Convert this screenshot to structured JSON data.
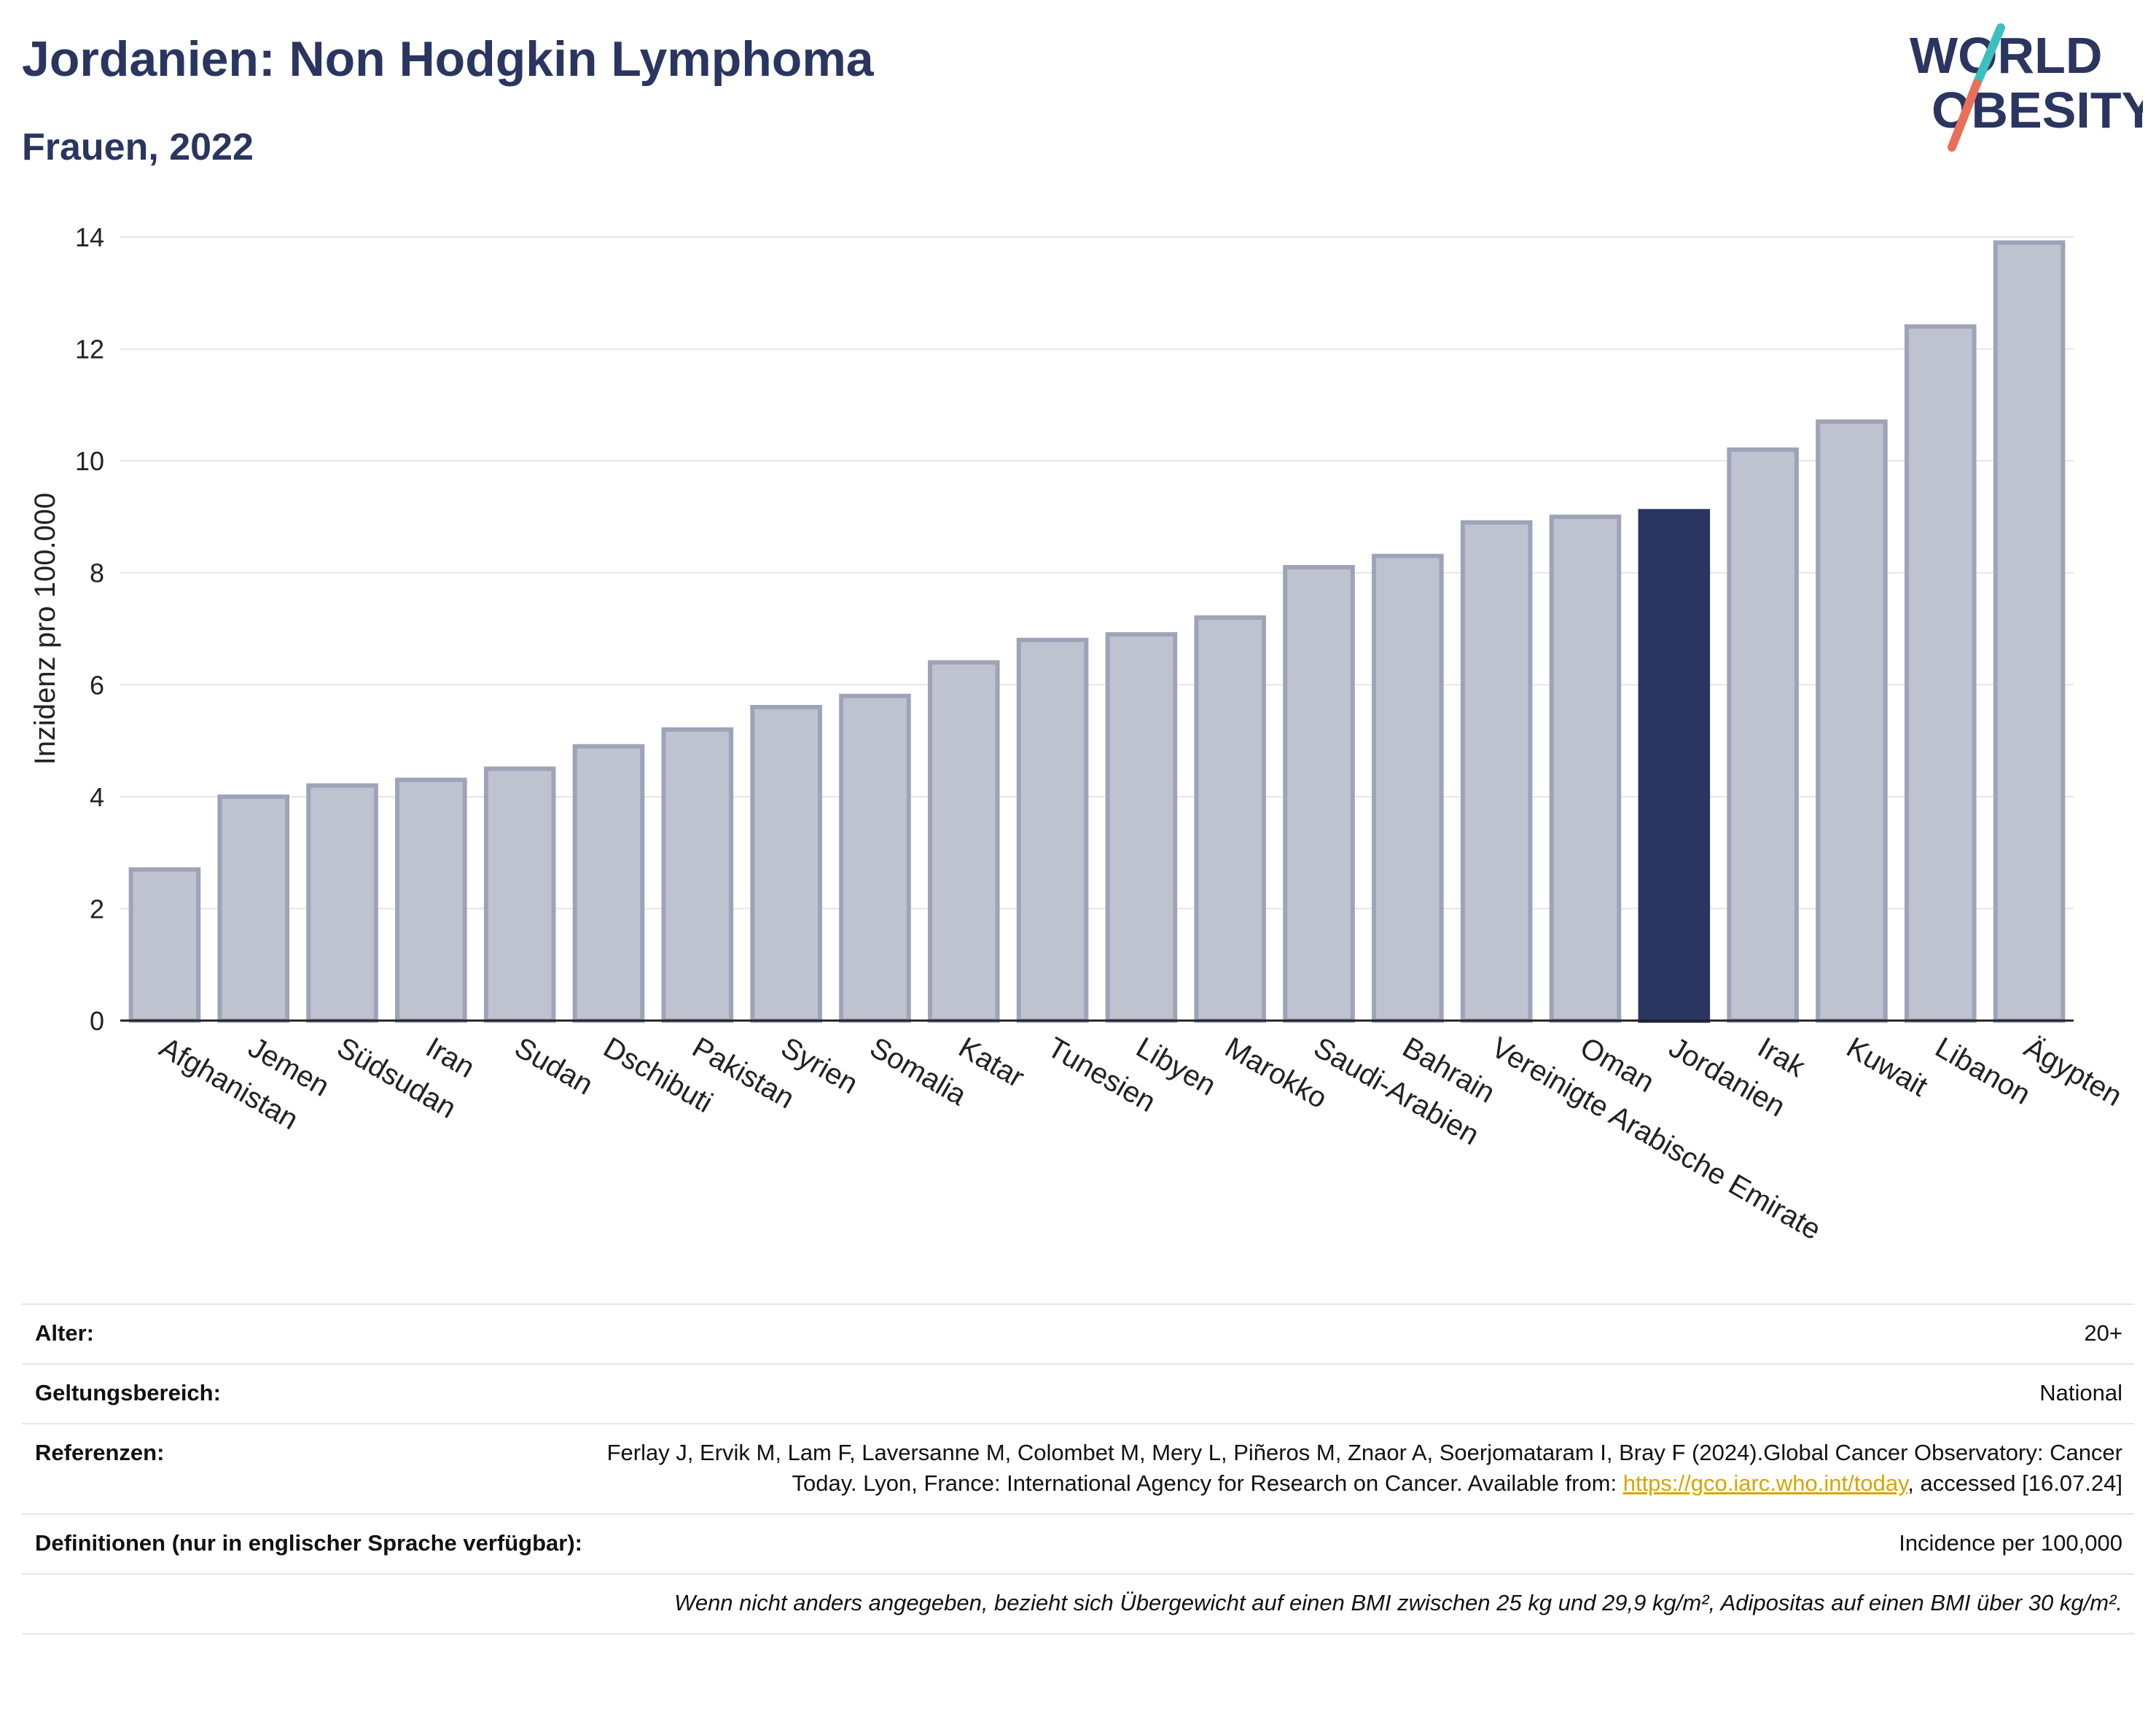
{
  "header": {
    "title": "Jordanien: Non Hodgkin Lymphoma",
    "subtitle": "Frauen, 2022",
    "logo_line1": "WORLD",
    "logo_line2": "OBESITY"
  },
  "colors": {
    "title": "#2a3560",
    "bar": "#bfc3d0",
    "bar_stroke": "#9ea3b8",
    "highlight": "#2a3560",
    "grid": "#e6e6e6",
    "link": "#d9a400",
    "logo_teal": "#3cbfbf",
    "logo_coral": "#e8705a"
  },
  "chart_data": {
    "type": "bar",
    "title": "Jordanien: Non Hodgkin Lymphoma",
    "subtitle": "Frauen, 2022",
    "xlabel": "",
    "ylabel": "Inzidenz pro 100.000",
    "ylim": [
      0,
      14
    ],
    "yticks": [
      0,
      2,
      4,
      6,
      8,
      10,
      12,
      14
    ],
    "grid": true,
    "categories": [
      "Afghanistan",
      "Jemen",
      "Südsudan",
      "Iran",
      "Sudan",
      "Dschibuti",
      "Pakistan",
      "Syrien",
      "Somalia",
      "Katar",
      "Tunesien",
      "Libyen",
      "Marokko",
      "Saudi-Arabien",
      "Bahrain",
      "Vereinigte Arabische Emirate",
      "Oman",
      "Jordanien",
      "Irak",
      "Kuwait",
      "Libanon",
      "Ägypten"
    ],
    "values": [
      2.7,
      4.0,
      4.2,
      4.3,
      4.5,
      4.9,
      5.2,
      5.6,
      5.8,
      6.4,
      6.8,
      6.9,
      7.2,
      8.1,
      8.3,
      8.9,
      9.0,
      9.1,
      10.2,
      10.7,
      12.4,
      13.9
    ],
    "highlight": "Jordanien"
  },
  "meta": {
    "rows": [
      {
        "label": "Alter:",
        "value": "20+"
      },
      {
        "label": "Geltungsbereich:",
        "value": "National"
      },
      {
        "label": "Referenzen:",
        "value_pre": "Ferlay J, Ervik M, Lam F, Laversanne M, Colombet M, Mery L, Piñeros M, Znaor A, Soerjomataram I, Bray F (2024).Global Cancer Observatory: Cancer Today. Lyon, France: International Agency for Research on Cancer. Available from: ",
        "link": "https://gco.iarc.who.int/today",
        "value_post": ", accessed [16.07.24]"
      },
      {
        "label": "Definitionen (nur in englischer Sprache verfügbar):",
        "value": "Incidence per 100,000"
      }
    ],
    "note": "Wenn nicht anders angegeben, bezieht sich Übergewicht auf einen BMI zwischen 25 kg und 29,9 kg/m², Adipositas auf einen BMI über 30 kg/m²."
  }
}
